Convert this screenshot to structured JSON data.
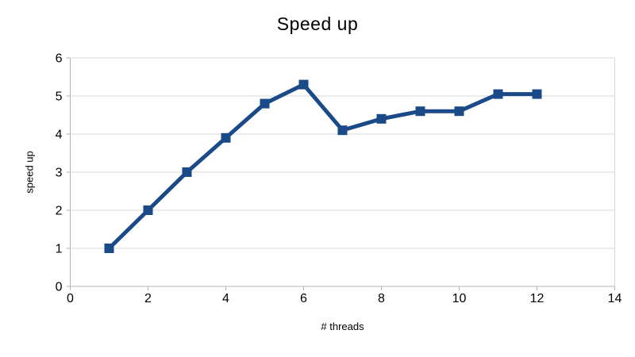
{
  "chart_data": {
    "type": "line",
    "title": "Speed up",
    "xlabel": "# threads",
    "ylabel": "speed up",
    "x": [
      1,
      2,
      3,
      4,
      5,
      6,
      7,
      8,
      9,
      10,
      11,
      12
    ],
    "series": [
      {
        "name": "speed up",
        "values": [
          1.0,
          2.0,
          3.0,
          3.9,
          4.8,
          5.3,
          4.1,
          4.4,
          4.6,
          4.6,
          5.05,
          5.05
        ]
      }
    ],
    "xlim": [
      0,
      14
    ],
    "ylim": [
      0,
      6
    ],
    "x_ticks": [
      0,
      2,
      4,
      6,
      8,
      10,
      12,
      14
    ],
    "y_ticks": [
      0,
      1,
      2,
      3,
      4,
      5,
      6
    ],
    "grid": "horizontal-only",
    "legend": "none",
    "marker": "square"
  },
  "colors": {
    "series": "#1a4a87",
    "axis": "#b3b3b3",
    "grid": "#d9d9d9",
    "text": "#000000",
    "background": "#ffffff"
  }
}
